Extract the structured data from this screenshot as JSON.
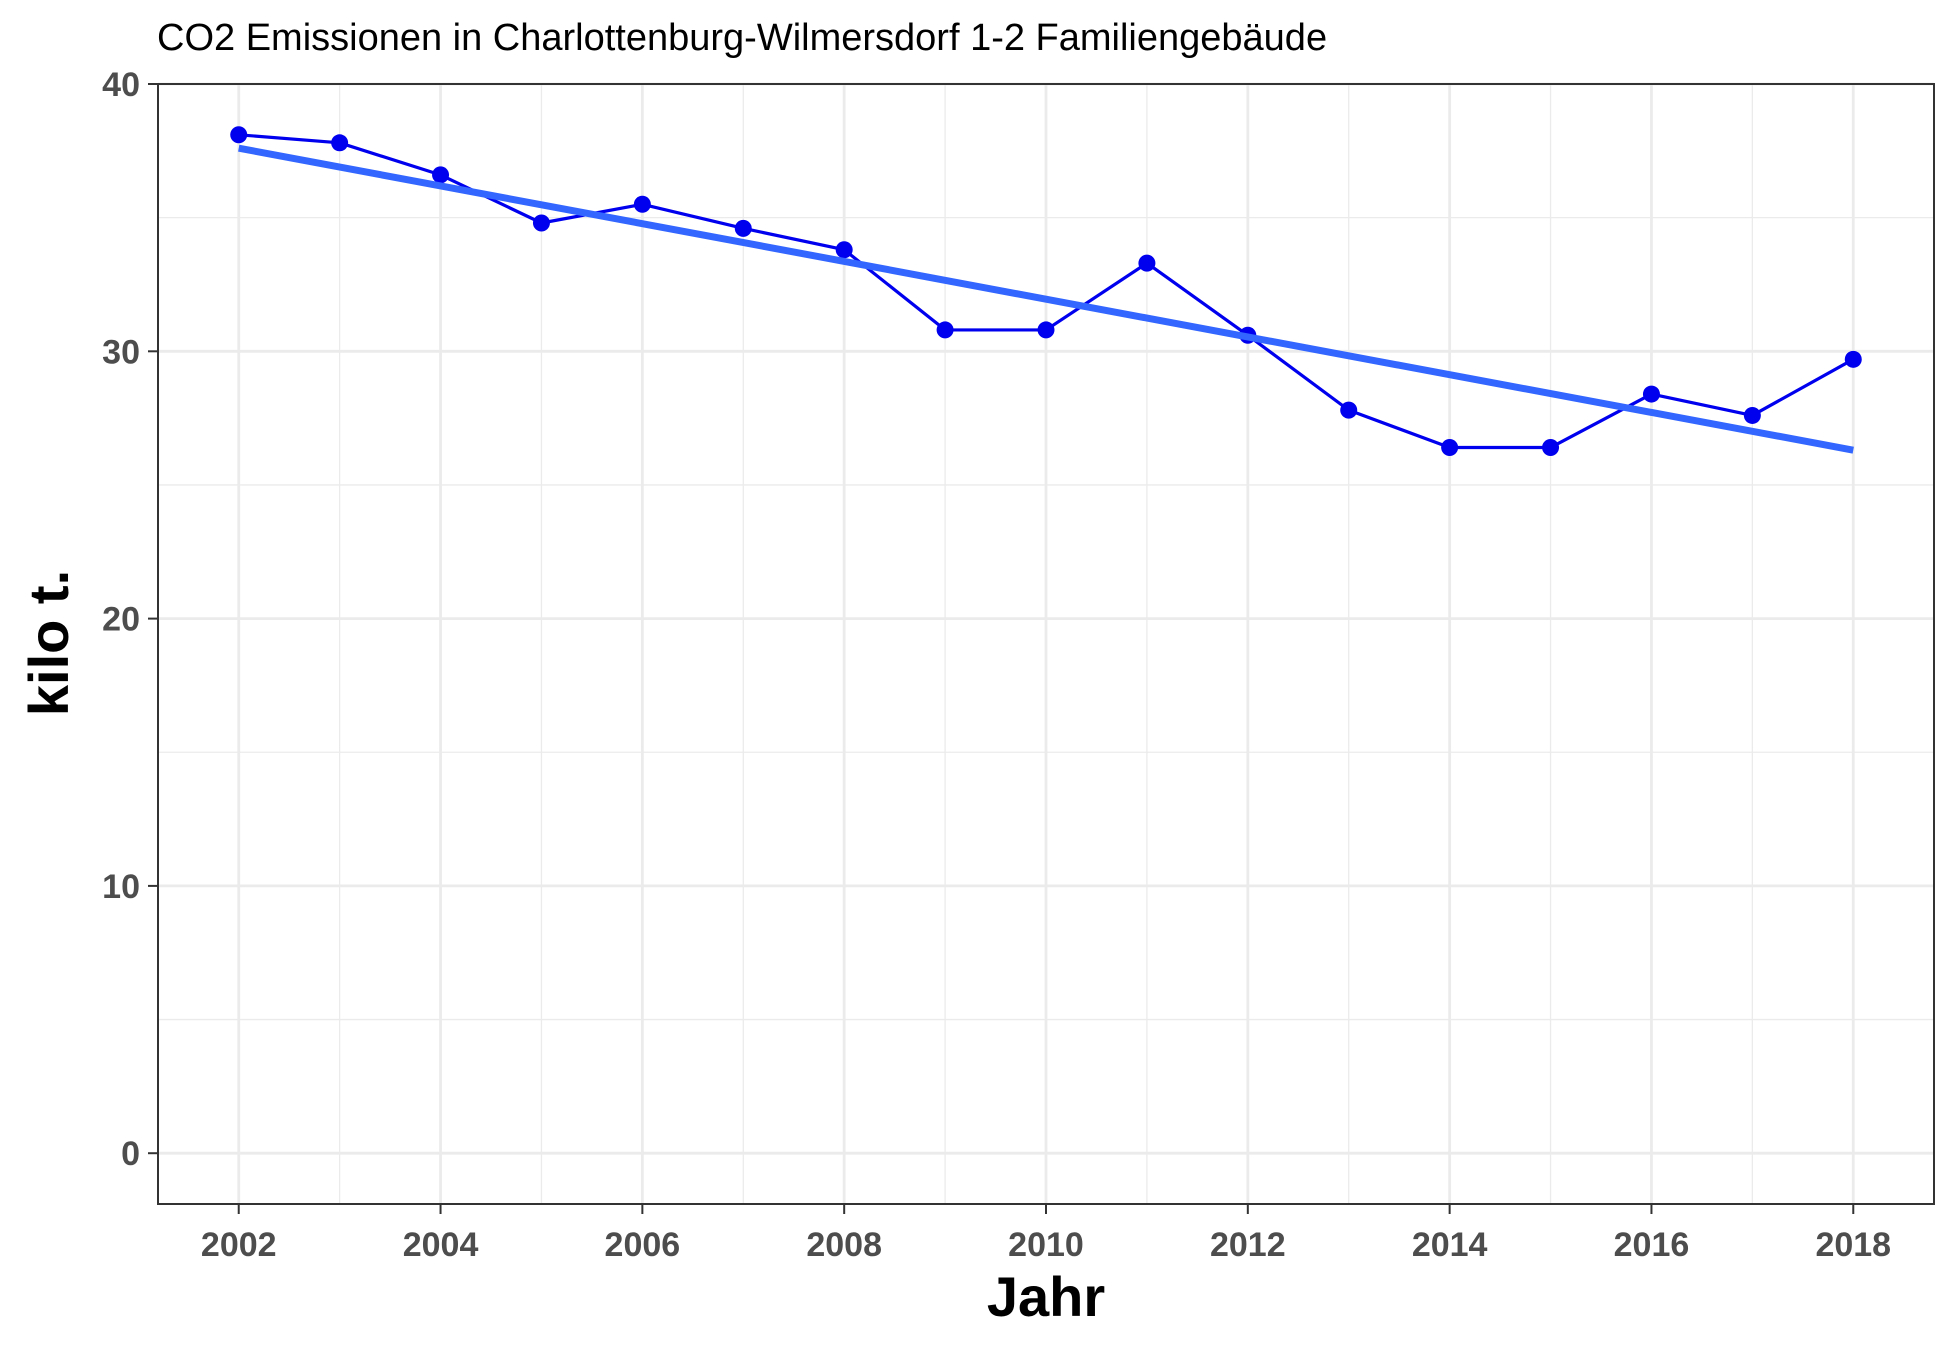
{
  "chart_data": {
    "type": "line",
    "title": "CO2 Emissionen in Charlottenburg-Wilmersdorf 1-2 Familiengebäude",
    "xlabel": "Jahr",
    "ylabel": "kilo t.",
    "xlim": [
      2001.2,
      2018.8
    ],
    "ylim": [
      -1.9,
      40
    ],
    "x_ticks": [
      2002,
      2004,
      2006,
      2008,
      2010,
      2012,
      2014,
      2016,
      2018
    ],
    "y_ticks": [
      0,
      10,
      20,
      30,
      40
    ],
    "grid": true,
    "series": [
      {
        "kind": "line+points",
        "color": "#0000ee",
        "x": [
          2002,
          2003,
          2004,
          2005,
          2006,
          2007,
          2008,
          2009,
          2010,
          2011,
          2012,
          2013,
          2014,
          2015,
          2016,
          2017,
          2018
        ],
        "values": [
          38.1,
          37.8,
          36.6,
          34.8,
          35.5,
          34.6,
          33.8,
          30.8,
          30.8,
          33.3,
          30.6,
          27.8,
          26.4,
          26.4,
          28.4,
          27.6,
          29.7
        ]
      },
      {
        "kind": "trend",
        "color": "#3366ff",
        "x": [
          2002,
          2018
        ],
        "values": [
          37.6,
          26.3
        ]
      }
    ]
  }
}
